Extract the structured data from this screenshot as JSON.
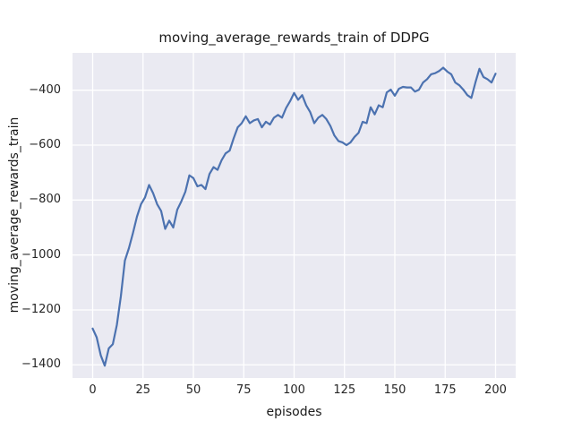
{
  "figure": {
    "background": "#ffffff",
    "axes_background": "#eaeaf2",
    "grid_color": "#ffffff",
    "text_color": "#262626",
    "line_color": "#4c72b0"
  },
  "chart_data": {
    "type": "line",
    "title": "moving_average_rewards_train of DDPG",
    "xlabel": "episodes",
    "ylabel": "moving_average_rewards_train",
    "legend": null,
    "grid": true,
    "xlim": [
      -10,
      210
    ],
    "ylim": [
      -1448,
      -264
    ],
    "xticks": [
      0,
      25,
      50,
      75,
      100,
      125,
      150,
      175,
      200
    ],
    "xtick_labels": [
      "0",
      "25",
      "50",
      "75",
      "100",
      "125",
      "150",
      "175",
      "200"
    ],
    "yticks": [
      -400,
      -600,
      -800,
      -1000,
      -1200,
      -1400
    ],
    "ytick_labels": [
      "−400",
      "−600",
      "−800",
      "−1000",
      "−1200",
      "−1400"
    ],
    "series": [
      {
        "name": "moving_average_rewards_train",
        "x": [
          0,
          2,
          4,
          6,
          8,
          10,
          12,
          14,
          16,
          18,
          20,
          22,
          24,
          26,
          28,
          30,
          32,
          34,
          36,
          38,
          40,
          42,
          44,
          46,
          48,
          50,
          52,
          54,
          56,
          58,
          60,
          62,
          64,
          66,
          68,
          70,
          72,
          74,
          76,
          78,
          80,
          82,
          84,
          86,
          88,
          90,
          92,
          94,
          96,
          98,
          100,
          102,
          104,
          106,
          108,
          110,
          112,
          114,
          116,
          118,
          120,
          122,
          124,
          126,
          128,
          130,
          132,
          134,
          136,
          138,
          140,
          142,
          144,
          146,
          148,
          150,
          152,
          154,
          156,
          158,
          160,
          162,
          164,
          166,
          168,
          170,
          172,
          174,
          176,
          178,
          180,
          182,
          184,
          186,
          188,
          190,
          192,
          194,
          196,
          198,
          200
        ],
        "y": [
          -1268,
          -1300,
          -1365,
          -1403,
          -1340,
          -1325,
          -1255,
          -1150,
          -1020,
          -975,
          -920,
          -860,
          -815,
          -790,
          -745,
          -775,
          -815,
          -840,
          -905,
          -875,
          -900,
          -835,
          -805,
          -770,
          -710,
          -720,
          -750,
          -745,
          -760,
          -705,
          -680,
          -690,
          -655,
          -630,
          -620,
          -575,
          -535,
          -520,
          -495,
          -520,
          -510,
          -505,
          -535,
          -515,
          -525,
          -500,
          -490,
          -500,
          -465,
          -440,
          -410,
          -435,
          -418,
          -455,
          -480,
          -520,
          -500,
          -490,
          -505,
          -530,
          -565,
          -585,
          -590,
          -600,
          -590,
          -570,
          -555,
          -515,
          -520,
          -462,
          -488,
          -455,
          -462,
          -408,
          -398,
          -420,
          -395,
          -388,
          -390,
          -390,
          -405,
          -398,
          -372,
          -360,
          -342,
          -338,
          -330,
          -318,
          -332,
          -342,
          -372,
          -382,
          -398,
          -418,
          -428,
          -372,
          -322,
          -352,
          -360,
          -372,
          -340
        ]
      }
    ]
  }
}
